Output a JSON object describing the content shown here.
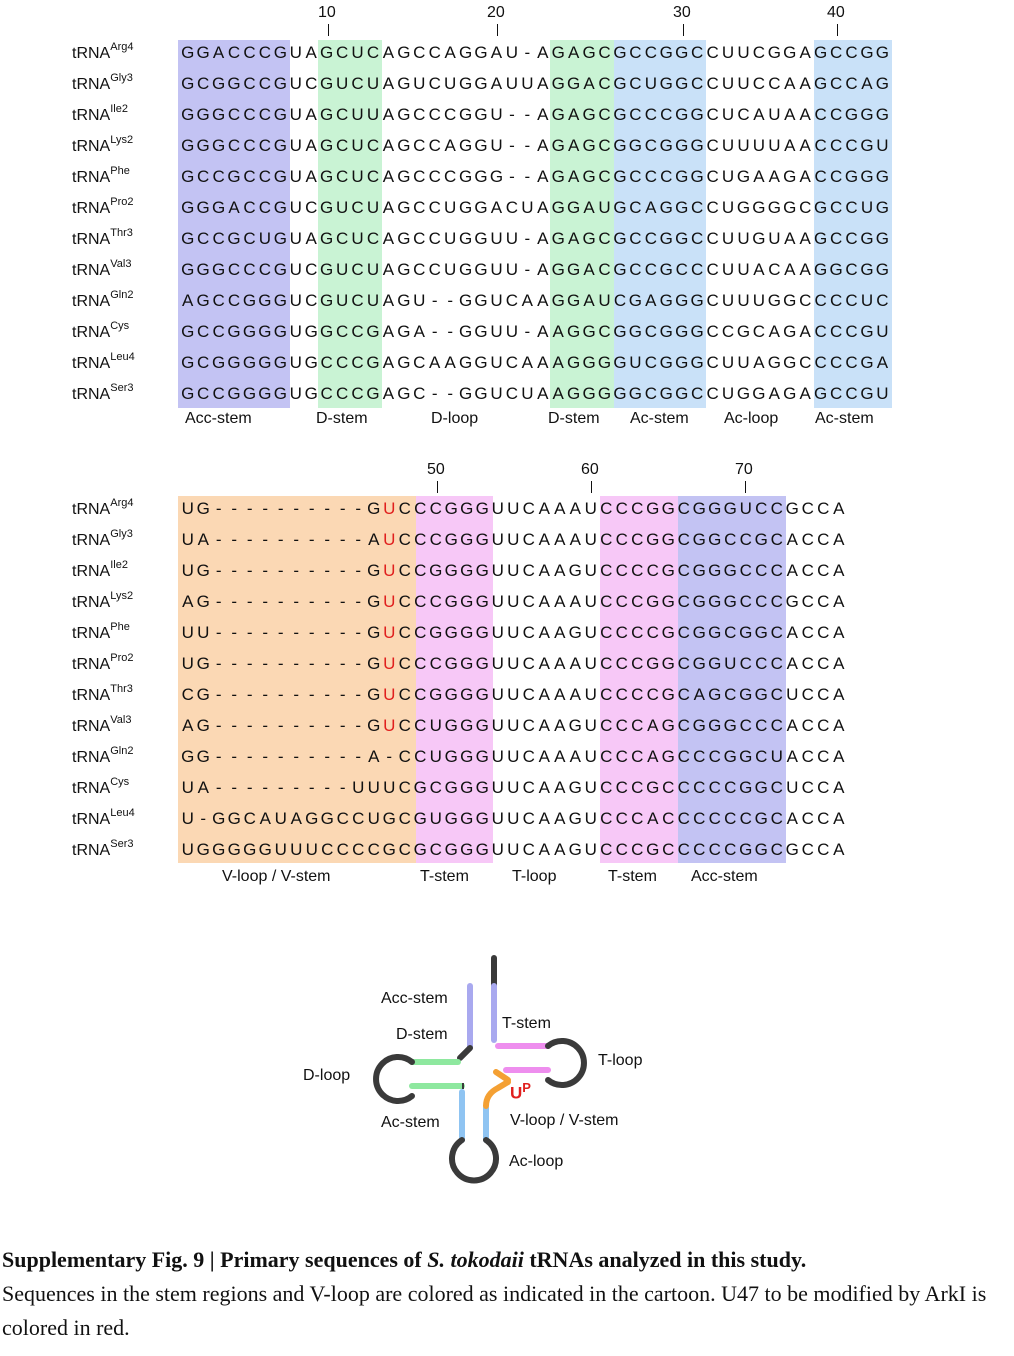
{
  "block1": {
    "ruler": [
      "10",
      "20",
      "30",
      "40"
    ],
    "names": [
      {
        "base": "tRNA",
        "sup": "Arg4"
      },
      {
        "base": "tRNA",
        "sup": "Gly3"
      },
      {
        "base": "tRNA",
        "sup": "Ile2"
      },
      {
        "base": "tRNA",
        "sup": "Lys2"
      },
      {
        "base": "tRNA",
        "sup": "Phe"
      },
      {
        "base": "tRNA",
        "sup": "Pro2"
      },
      {
        "base": "tRNA",
        "sup": "Thr3"
      },
      {
        "base": "tRNA",
        "sup": "Val3"
      },
      {
        "base": "tRNA",
        "sup": "Gln2"
      },
      {
        "base": "tRNA",
        "sup": "Cys"
      },
      {
        "base": "tRNA",
        "sup": "Leu4"
      },
      {
        "base": "tRNA",
        "sup": "Ser3"
      }
    ],
    "sequences": [
      "GGACCCGUAGCUCAGCCAGGAU-AGAGCGCCGGCCUUCGGAGCCGG",
      "GCGGCCGUCGUCUAGUCUGGAUUAGGACGCUGGCCUUCCAAGCCAG",
      "GGGCCCGUAGCUUAGCCCGGU--AGAGCGCCCGGCUCAUAACCGGG",
      "GGGCCCGUAGCUCAGCCAGGU--AGAGCGGCGGGCUUUUAACCCGU",
      "GCCGCCGUAGCUCAGCCCGGG--AGAGCGCCCGGCUGAAGACCGGG",
      "GGGACCGUCGUCUAGCCUGGACUAGGAUGCAGGCCUGGGGCGCCUG",
      "GCCGCUGUAGCUCAGCCUGGUU-AGAGCGCCGGCCUUGUAAGCCGG",
      "GGGCCCGUCGUCUAGCCUGGUU-AGGACGCCGCCCUUACAAGGCGG",
      "AGCCGGGUCGUCUAGU--GGUCAAGGAUCGAGGGCUUUGGCCCCUC",
      "GCCGGGGUGGCCGAGA--GGUU-AAGGCGGCGGGCCGCAGACCCGU",
      "GCGGGGGUGCCCGAGCAAGGUCAAAGGGGUCGGGCUUAGGCCCCGA",
      "GCCGGGGUGCCCGAGC--GGUCUAAGGGGGCGGCCUGGAGAGCCGU"
    ],
    "regions": [
      "Acc-stem",
      "D-stem",
      "D-loop",
      "D-stem",
      "Ac-stem",
      "Ac-loop",
      "Ac-stem"
    ],
    "region_colors": {
      "acc": "#c3c3f3",
      "dstem": "#c9f3d4",
      "acstem": "#c9e1f8"
    }
  },
  "block2": {
    "ruler": [
      "50",
      "60",
      "70"
    ],
    "names": [
      {
        "base": "tRNA",
        "sup": "Arg4"
      },
      {
        "base": "tRNA",
        "sup": "Gly3"
      },
      {
        "base": "tRNA",
        "sup": "Ile2"
      },
      {
        "base": "tRNA",
        "sup": "Lys2"
      },
      {
        "base": "tRNA",
        "sup": "Phe"
      },
      {
        "base": "tRNA",
        "sup": "Pro2"
      },
      {
        "base": "tRNA",
        "sup": "Thr3"
      },
      {
        "base": "tRNA",
        "sup": "Val3"
      },
      {
        "base": "tRNA",
        "sup": "Gln2"
      },
      {
        "base": "tRNA",
        "sup": "Cys"
      },
      {
        "base": "tRNA",
        "sup": "Leu4"
      },
      {
        "base": "tRNA",
        "sup": "Ser3"
      }
    ],
    "sequences": [
      "UG----------GUCCCGGGUUCAAAUCCCGGCGGGUCCGCCA",
      "UA----------AUCCCGGGUUCAAAUCCCGGCGGCCGCACCA",
      "UG----------GUCCGGGGUUCAAGUCCCCGCGGGCCCACCA",
      "AG----------GUCCCGGGUUCAAAUCCCGGCGGGCCCGCCA",
      "UU----------GUCCGGGGUUCAAGUCCCCGCGGCGGCACCA",
      "UG----------GUCCCGGGUUCAAAUCCCGGCGGUCCCACCA",
      "CG----------GUCCGGGGUUCAAAUCCCCGCAGCGGCUCCA",
      "AG----------GUCCUGGGUUCAAGUCCCAGCGGGCCCACCA",
      "GG----------A-CCUGGGUUCAAAUCCCAGCCCGGCUACCA",
      "UA---------UUUCGCGGGUUCAAGUCCCGCCCCCGGCUCCA",
      "U-GGCAUAGGCCUGCGUGGGUUCAAGUCCCACCCCCCGCACCA",
      "UGGGGGUUUCCCCGCGCGGGUUCAAGUCCCGCCCCCGGCGCCA"
    ],
    "red_positions": [
      [
        13
      ],
      [
        13
      ],
      [
        13
      ],
      [
        13
      ],
      [
        13
      ],
      [
        13
      ],
      [
        13
      ],
      [
        13
      ],
      [],
      [],
      [],
      []
    ],
    "regions": [
      "V-loop / V-stem",
      "T-stem",
      "T-loop",
      "T-stem",
      "Acc-stem"
    ],
    "region_colors": {
      "vloop": "#fbd8b4",
      "tstem": "#f7c8f7",
      "acc": "#c3c3f3"
    }
  },
  "cartoon": {
    "labels": {
      "acc_stem": "Acc-stem",
      "d_stem": "D-stem",
      "d_loop": "D-loop",
      "ac_stem": "Ac-stem",
      "t_stem": "T-stem",
      "t_loop": "T-loop",
      "v_loop": "V-loop / V-stem",
      "ac_loop": "Ac-loop",
      "up_main": "U",
      "up_sup": "P"
    },
    "colors": {
      "acc": "#a9a9ef",
      "dstem": "#8ee89f",
      "acstem": "#8fc4f2",
      "tstem": "#ee8eee",
      "vloop": "#f4a033",
      "backbone": "#3a3a3a",
      "red": "#e0201e"
    }
  },
  "caption": {
    "bold_part1": "Supplementary Fig. 9 | Primary sequences of ",
    "bold_italic": "S. tokodaii",
    "bold_part2": " tRNAs analyzed in this study.",
    "text": "Sequences in the stem regions and V-loop are colored as indicated in the cartoon. U47 to be modified by ArkI is colored in red."
  }
}
